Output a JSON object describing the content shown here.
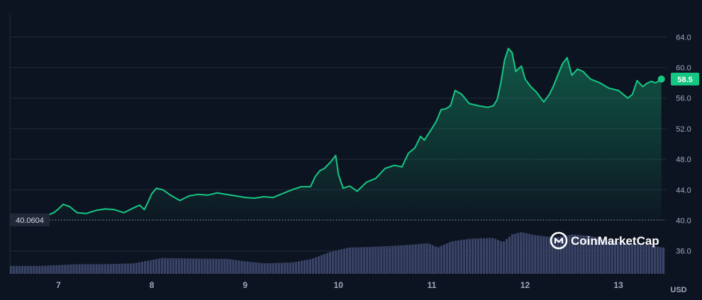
{
  "chart_data": {
    "type": "area",
    "currency_label": "USD",
    "brand": "CoinMarketCap",
    "baseline": {
      "value": 40.0604,
      "label": "40.0604"
    },
    "current": {
      "value": 58.5,
      "label": "58.5"
    },
    "ylim": [
      33,
      67
    ],
    "y_ticks": [
      {
        "value": 64,
        "label": "64.0"
      },
      {
        "value": 60,
        "label": "60.0"
      },
      {
        "value": 56,
        "label": "56.0"
      },
      {
        "value": 52,
        "label": "52.0"
      },
      {
        "value": 48,
        "label": "48.0"
      },
      {
        "value": 44,
        "label": "44.0"
      },
      {
        "value": 40,
        "label": "40.0"
      },
      {
        "value": 36,
        "label": "36.0"
      }
    ],
    "xlim": [
      6.48,
      13.5
    ],
    "x_ticks": [
      {
        "value": 7,
        "label": "7"
      },
      {
        "value": 8,
        "label": "8"
      },
      {
        "value": 9,
        "label": "9"
      },
      {
        "value": 10,
        "label": "10"
      },
      {
        "value": 11,
        "label": "11"
      },
      {
        "value": 12,
        "label": "12"
      },
      {
        "value": 13,
        "label": "13"
      }
    ],
    "grid": true,
    "colors": {
      "background": "#0d1421",
      "line": "#16c784",
      "volume": "#3a4468",
      "grid": "#222a3a",
      "badge": "#16c784",
      "base_badge": "#222838"
    },
    "price_series": [
      [
        6.48,
        40.06
      ],
      [
        6.6,
        40.1
      ],
      [
        6.7,
        40.2
      ],
      [
        6.85,
        40.5
      ],
      [
        6.95,
        41.0
      ],
      [
        7.0,
        41.5
      ],
      [
        7.05,
        42.1
      ],
      [
        7.12,
        41.8
      ],
      [
        7.2,
        41.0
      ],
      [
        7.3,
        40.9
      ],
      [
        7.4,
        41.3
      ],
      [
        7.5,
        41.5
      ],
      [
        7.6,
        41.4
      ],
      [
        7.7,
        41.0
      ],
      [
        7.8,
        41.6
      ],
      [
        7.87,
        42.0
      ],
      [
        7.92,
        41.4
      ],
      [
        7.96,
        42.4
      ],
      [
        8.0,
        43.5
      ],
      [
        8.05,
        44.2
      ],
      [
        8.12,
        44.0
      ],
      [
        8.2,
        43.3
      ],
      [
        8.3,
        42.6
      ],
      [
        8.4,
        43.2
      ],
      [
        8.5,
        43.4
      ],
      [
        8.6,
        43.3
      ],
      [
        8.7,
        43.6
      ],
      [
        8.8,
        43.4
      ],
      [
        8.9,
        43.2
      ],
      [
        9.0,
        43.0
      ],
      [
        9.1,
        42.9
      ],
      [
        9.2,
        43.1
      ],
      [
        9.3,
        43.0
      ],
      [
        9.4,
        43.5
      ],
      [
        9.5,
        44.0
      ],
      [
        9.6,
        44.4
      ],
      [
        9.7,
        44.4
      ],
      [
        9.75,
        45.7
      ],
      [
        9.8,
        46.5
      ],
      [
        9.85,
        46.8
      ],
      [
        9.92,
        47.7
      ],
      [
        9.97,
        48.5
      ],
      [
        10.0,
        46.0
      ],
      [
        10.05,
        44.2
      ],
      [
        10.12,
        44.5
      ],
      [
        10.18,
        44.0
      ],
      [
        10.2,
        43.8
      ],
      [
        10.3,
        45.0
      ],
      [
        10.4,
        45.5
      ],
      [
        10.5,
        46.8
      ],
      [
        10.6,
        47.2
      ],
      [
        10.68,
        47.0
      ],
      [
        10.75,
        48.8
      ],
      [
        10.82,
        49.5
      ],
      [
        10.88,
        51.0
      ],
      [
        10.92,
        50.5
      ],
      [
        11.0,
        52.0
      ],
      [
        11.05,
        53.0
      ],
      [
        11.1,
        54.5
      ],
      [
        11.15,
        54.6
      ],
      [
        11.2,
        55.0
      ],
      [
        11.25,
        57.0
      ],
      [
        11.32,
        56.5
      ],
      [
        11.4,
        55.3
      ],
      [
        11.5,
        55.0
      ],
      [
        11.6,
        54.8
      ],
      [
        11.66,
        55.0
      ],
      [
        11.7,
        55.8
      ],
      [
        11.74,
        58.0
      ],
      [
        11.78,
        61.0
      ],
      [
        11.82,
        62.5
      ],
      [
        11.86,
        62.0
      ],
      [
        11.9,
        59.5
      ],
      [
        11.96,
        60.2
      ],
      [
        12.0,
        58.5
      ],
      [
        12.06,
        57.5
      ],
      [
        12.12,
        56.8
      ],
      [
        12.2,
        55.5
      ],
      [
        12.26,
        56.5
      ],
      [
        12.3,
        57.5
      ],
      [
        12.35,
        59.0
      ],
      [
        12.4,
        60.5
      ],
      [
        12.45,
        61.3
      ],
      [
        12.5,
        59.0
      ],
      [
        12.56,
        59.8
      ],
      [
        12.62,
        59.5
      ],
      [
        12.7,
        58.5
      ],
      [
        12.8,
        58.0
      ],
      [
        12.9,
        57.3
      ],
      [
        13.0,
        57.0
      ],
      [
        13.1,
        56.0
      ],
      [
        13.15,
        56.5
      ],
      [
        13.2,
        58.3
      ],
      [
        13.26,
        57.5
      ],
      [
        13.3,
        57.9
      ],
      [
        13.35,
        58.2
      ],
      [
        13.4,
        58.0
      ],
      [
        13.46,
        58.5
      ]
    ],
    "volume_series": [
      [
        6.48,
        0.18
      ],
      [
        6.6,
        0.18
      ],
      [
        6.8,
        0.18
      ],
      [
        7.0,
        0.2
      ],
      [
        7.2,
        0.22
      ],
      [
        7.5,
        0.22
      ],
      [
        7.8,
        0.24
      ],
      [
        7.95,
        0.3
      ],
      [
        8.1,
        0.36
      ],
      [
        8.4,
        0.35
      ],
      [
        8.8,
        0.34
      ],
      [
        9.0,
        0.28
      ],
      [
        9.2,
        0.24
      ],
      [
        9.5,
        0.26
      ],
      [
        9.7,
        0.34
      ],
      [
        9.9,
        0.5
      ],
      [
        10.1,
        0.6
      ],
      [
        10.3,
        0.61
      ],
      [
        10.6,
        0.64
      ],
      [
        10.8,
        0.67
      ],
      [
        10.95,
        0.7
      ],
      [
        11.05,
        0.6
      ],
      [
        11.2,
        0.74
      ],
      [
        11.4,
        0.8
      ],
      [
        11.65,
        0.82
      ],
      [
        11.75,
        0.72
      ],
      [
        11.85,
        0.9
      ],
      [
        11.95,
        0.95
      ],
      [
        12.1,
        0.88
      ],
      [
        12.3,
        0.83
      ],
      [
        12.5,
        0.9
      ],
      [
        12.7,
        0.86
      ],
      [
        12.9,
        0.76
      ],
      [
        13.1,
        0.7
      ],
      [
        13.3,
        0.66
      ],
      [
        13.46,
        0.6
      ]
    ]
  }
}
